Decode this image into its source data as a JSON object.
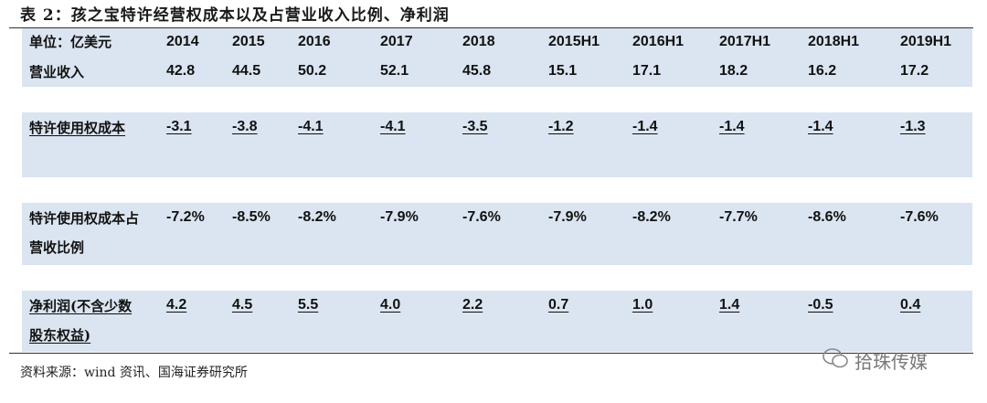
{
  "title": "表 2：孩之宝特许经营权成本以及占营业收入比例、净利润",
  "table": {
    "header": [
      "单位：亿美元",
      "2014",
      "2015",
      "2016",
      "2017",
      "2018",
      "2015H1",
      "2016H1",
      "2017H1",
      "2018H1",
      "2019H1"
    ],
    "rows": [
      {
        "label": "营业收入",
        "cells": [
          "42.8",
          "44.5",
          "50.2",
          "52.1",
          "45.8",
          "15.1",
          "17.1",
          "18.2",
          "16.2",
          "17.2"
        ]
      },
      {
        "label": "特许使用权成本",
        "cells": [
          "-3.1",
          "-3.8",
          "-4.1",
          "-4.1",
          "-3.5",
          "-1.2",
          "-1.4",
          "-1.4",
          "-1.4",
          "-1.3"
        ]
      },
      {
        "label": "特许使用权成本占营收比例",
        "cells": [
          "-7.2%",
          "-8.5%",
          "-8.2%",
          "-7.9%",
          "-7.6%",
          "-7.9%",
          "-8.2%",
          "-7.7%",
          "-8.6%",
          "-7.6%"
        ]
      },
      {
        "label": "净利润(不含少数股东权益)",
        "cells": [
          "4.2",
          "4.5",
          "5.5",
          "4.0",
          "2.2",
          "0.7",
          "1.0",
          "1.4",
          "-0.5",
          "0.4"
        ]
      }
    ]
  },
  "source": "资料来源：wind 资讯、国海证券研究所",
  "watermark": "拾珠传媒"
}
